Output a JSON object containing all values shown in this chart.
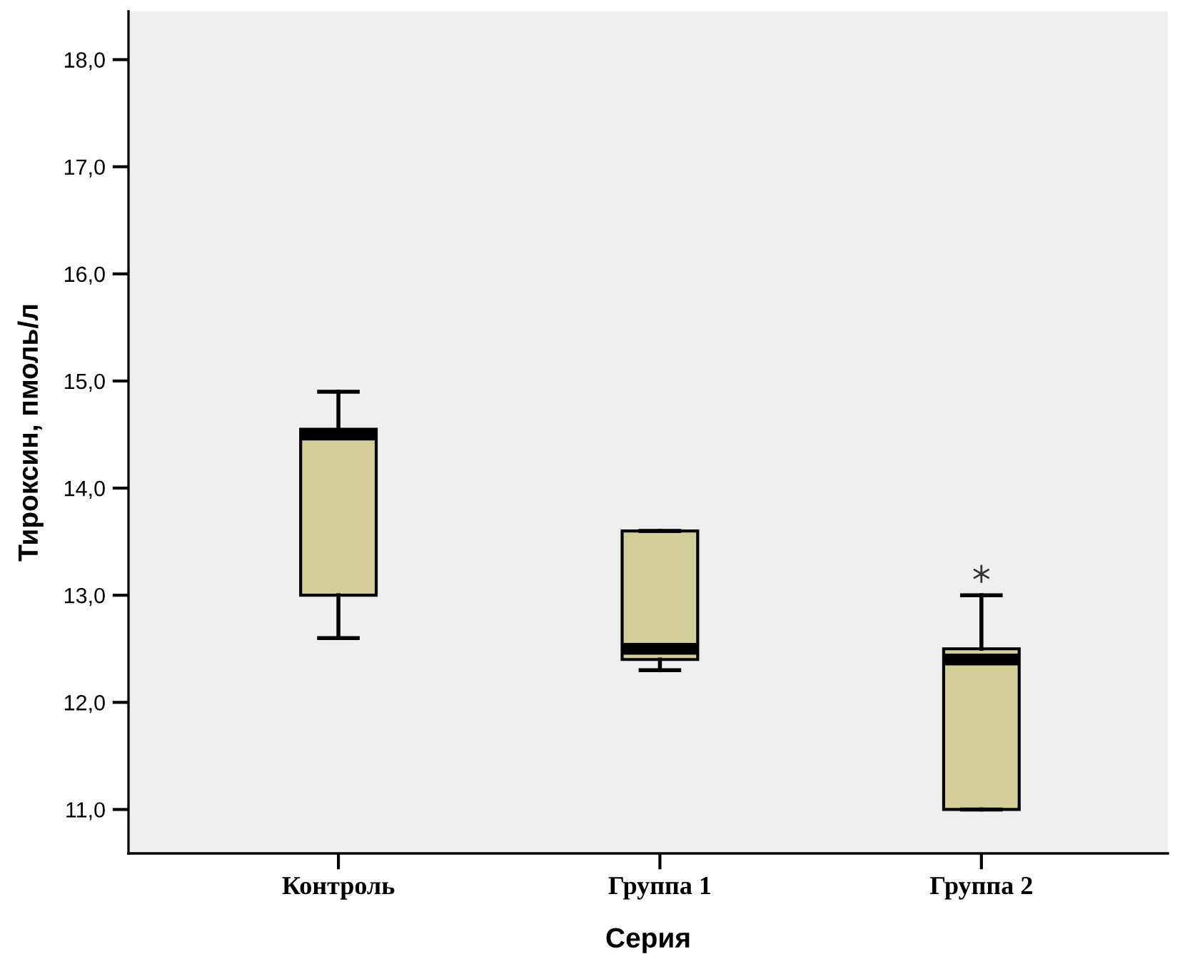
{
  "chart_data": {
    "type": "box",
    "xlabel": "Серия",
    "ylabel": "Тироксин, пмоль/л",
    "categories": [
      "Контроль",
      "Группа 1",
      "Группа 2"
    ],
    "color": "#d3ce97",
    "boxes": [
      {
        "low": 12.6,
        "q1": 13.0,
        "median": 14.5,
        "q3": 14.55,
        "high": 14.9
      },
      {
        "low": 12.3,
        "q1": 12.4,
        "median": 12.5,
        "q3": 13.6,
        "high": 13.6
      },
      {
        "low": 11.0,
        "q1": 11.0,
        "median": 12.4,
        "q3": 12.5,
        "high": 13.0,
        "outliers": [
          13.2
        ]
      }
    ],
    "ylim": [
      10.59,
      18.45
    ],
    "yticks": [
      {
        "value": 11,
        "label": "11,0"
      },
      {
        "value": 12,
        "label": "12,0"
      },
      {
        "value": 13,
        "label": "13,0"
      },
      {
        "value": 14,
        "label": "14,0"
      },
      {
        "value": 15,
        "label": "15,0"
      },
      {
        "value": 16,
        "label": "16,0"
      },
      {
        "value": 17,
        "label": "17,0"
      },
      {
        "value": 18,
        "label": "18,0"
      }
    ],
    "grid": false
  }
}
